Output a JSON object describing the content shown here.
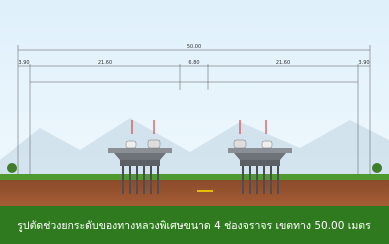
{
  "diagram": {
    "dimensions": {
      "total": "50.00",
      "left_half": "21.60",
      "median": "6.80",
      "right_half": "21.60",
      "left_edge": "3.90",
      "right_edge": "3.90"
    },
    "caption": "รูปตัดช่วงยกระดับของทางหลวงพิเศษขนาด 4 ช่องจราจร เขตทาง 50.00 เมตร"
  }
}
